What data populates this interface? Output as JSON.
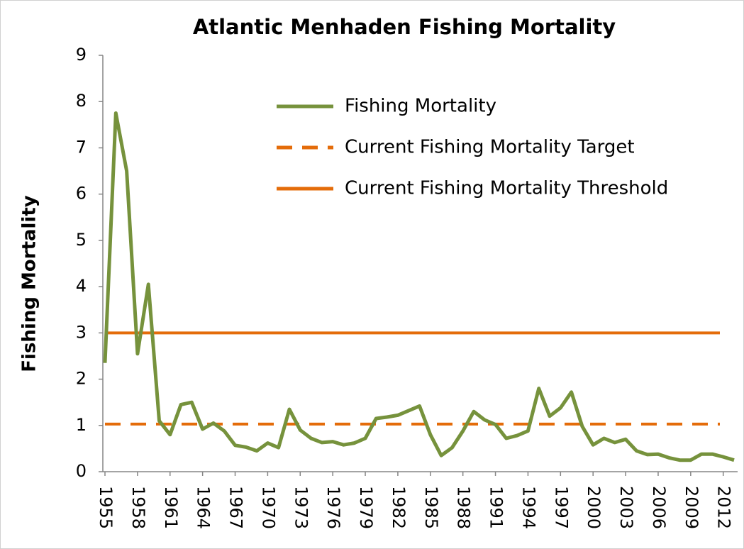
{
  "chart_data": {
    "type": "line",
    "title": "Atlantic Menhaden Fishing Mortality",
    "y_label": "Fishing Mortality",
    "x": [
      1955,
      1956,
      1957,
      1958,
      1959,
      1960,
      1961,
      1962,
      1963,
      1964,
      1965,
      1966,
      1967,
      1968,
      1969,
      1970,
      1971,
      1972,
      1973,
      1974,
      1975,
      1976,
      1977,
      1978,
      1979,
      1980,
      1981,
      1982,
      1983,
      1984,
      1985,
      1986,
      1987,
      1988,
      1989,
      1990,
      1991,
      1992,
      1993,
      1994,
      1995,
      1996,
      1997,
      1998,
      1999,
      2000,
      2001,
      2002,
      2003,
      2004,
      2005,
      2006,
      2007,
      2008,
      2009,
      2010,
      2011,
      2012,
      2013
    ],
    "series": [
      {
        "name": "Fishing Mortality",
        "color": "#76923c",
        "values": [
          2.35,
          7.75,
          6.5,
          2.55,
          4.05,
          1.1,
          0.8,
          1.45,
          1.5,
          0.92,
          1.05,
          0.88,
          0.57,
          0.53,
          0.45,
          0.62,
          0.52,
          1.35,
          0.9,
          0.72,
          0.63,
          0.65,
          0.58,
          0.62,
          0.72,
          1.15,
          1.18,
          1.22,
          1.32,
          1.42,
          0.8,
          0.35,
          0.52,
          0.88,
          1.3,
          1.12,
          1.02,
          0.72,
          0.78,
          0.88,
          1.8,
          1.2,
          1.38,
          1.72,
          0.98,
          0.58,
          0.72,
          0.63,
          0.7,
          0.45,
          0.37,
          0.38,
          0.3,
          0.25,
          0.25,
          0.38,
          0.38,
          0.32,
          0.25
        ]
      }
    ],
    "reference_lines": [
      {
        "name": "Current Fishing Mortality Target",
        "color": "#e46c0a",
        "value": 1.03,
        "dashed": true
      },
      {
        "name": "Current Fishing Mortality Threshold",
        "color": "#e46c0a",
        "value": 3,
        "dashed": false
      }
    ],
    "xlim": [
      1955,
      2013
    ],
    "xticks": [
      1955,
      1958,
      1961,
      1964,
      1967,
      1970,
      1973,
      1976,
      1979,
      1982,
      1985,
      1988,
      1991,
      1994,
      1997,
      2000,
      2003,
      2006,
      2009,
      2012
    ],
    "ylim": [
      0,
      9
    ],
    "yticks": [
      0,
      1,
      2,
      3,
      4,
      5,
      6,
      7,
      8,
      9
    ],
    "grid": false,
    "legend": "upper-right"
  }
}
